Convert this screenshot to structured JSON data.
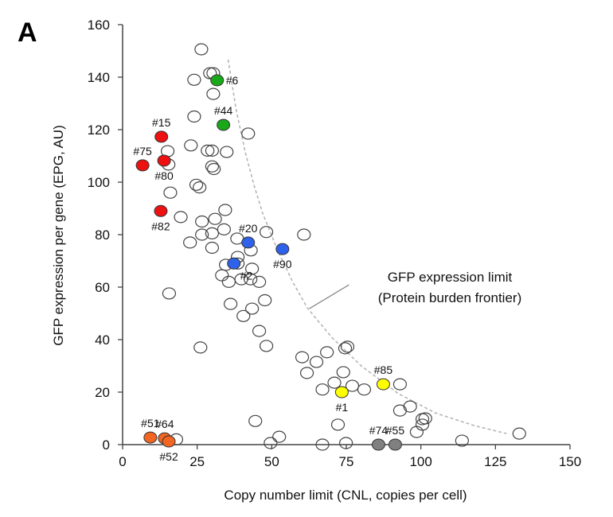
{
  "panel_label": "A",
  "chart_data": {
    "type": "scatter",
    "title": "",
    "xlabel": "Copy number limit (CNL, copies per cell)",
    "ylabel": "GFP expression per gene (EPG, AU)",
    "xlim": [
      0,
      150
    ],
    "ylim": [
      0,
      160
    ],
    "xticks": [
      0,
      25,
      50,
      75,
      100,
      125,
      150
    ],
    "yticks": [
      0,
      20,
      40,
      60,
      80,
      100,
      120,
      140,
      160
    ],
    "grid": false,
    "open_points": [
      [
        26.4,
        150.6
      ],
      [
        29.3,
        141.5
      ],
      [
        30.4,
        141.5
      ],
      [
        24,
        139
      ],
      [
        30.4,
        133.6
      ],
      [
        24,
        125
      ],
      [
        42.1,
        118.5
      ],
      [
        15.4,
        106.7
      ],
      [
        15.1,
        111.8
      ],
      [
        22.9,
        114
      ],
      [
        28.5,
        112
      ],
      [
        30,
        112
      ],
      [
        34.9,
        111.5
      ],
      [
        30,
        106
      ],
      [
        30.6,
        105
      ],
      [
        24.7,
        99
      ],
      [
        25.8,
        98
      ],
      [
        16,
        96
      ],
      [
        19.5,
        86.7
      ],
      [
        26.6,
        85
      ],
      [
        34.4,
        89.4
      ],
      [
        31,
        86
      ],
      [
        34,
        82
      ],
      [
        22.6,
        77
      ],
      [
        26.6,
        80
      ],
      [
        30,
        80.5
      ],
      [
        38.4,
        78.5
      ],
      [
        48.2,
        81
      ],
      [
        60.8,
        80
      ],
      [
        30,
        75
      ],
      [
        43,
        74
      ],
      [
        38.6,
        71.5
      ],
      [
        43.4,
        67
      ],
      [
        38.6,
        69
      ],
      [
        34.6,
        68.5
      ],
      [
        33.3,
        64.5
      ],
      [
        35.6,
        62
      ],
      [
        39.8,
        63
      ],
      [
        42.9,
        63
      ],
      [
        45.8,
        62
      ],
      [
        15.6,
        57.6
      ],
      [
        36.2,
        53.6
      ],
      [
        43.4,
        51.8
      ],
      [
        40.5,
        49
      ],
      [
        47.7,
        55
      ],
      [
        45.8,
        43.3
      ],
      [
        48.2,
        37.6
      ],
      [
        26.1,
        37
      ],
      [
        60.2,
        33.3
      ],
      [
        61.8,
        27.3
      ],
      [
        65,
        31.5
      ],
      [
        68.5,
        35.2
      ],
      [
        74.6,
        36.7
      ],
      [
        75.4,
        37.3
      ],
      [
        74,
        27.6
      ],
      [
        67,
        21
      ],
      [
        71,
        23.6
      ],
      [
        77,
        22.4
      ],
      [
        81,
        21
      ],
      [
        93,
        23
      ],
      [
        93,
        13
      ],
      [
        96.4,
        14.5
      ],
      [
        100.5,
        9.7
      ],
      [
        101.5,
        10
      ],
      [
        100.5,
        7.6
      ],
      [
        98.6,
        4.8
      ],
      [
        72.2,
        7.6
      ],
      [
        44.5,
        9
      ],
      [
        52.5,
        3
      ],
      [
        49.6,
        0.6
      ],
      [
        67,
        0
      ],
      [
        74.9,
        0.6
      ],
      [
        113.8,
        1.5
      ],
      [
        133,
        4.2
      ],
      [
        18,
        2
      ]
    ],
    "highlighted_points": [
      {
        "label": "#6",
        "x": 31.7,
        "y": 138.8,
        "color": "#1aa81a",
        "label_pos": "right"
      },
      {
        "label": "#44",
        "x": 33.8,
        "y": 121.8,
        "color": "#1aa81a",
        "label_pos": "above"
      },
      {
        "label": "#15",
        "x": 13,
        "y": 117.3,
        "color": "#ee1111",
        "label_pos": "above"
      },
      {
        "label": "#75",
        "x": 6.7,
        "y": 106.4,
        "color": "#ee1111",
        "label_pos": "above"
      },
      {
        "label": "#80",
        "x": 13.9,
        "y": 108.2,
        "color": "#ee1111",
        "label_pos": "below"
      },
      {
        "label": "#82",
        "x": 12.8,
        "y": 89,
        "color": "#ee1111",
        "label_pos": "below"
      },
      {
        "label": "#20",
        "x": 42.1,
        "y": 77,
        "color": "#2f62ea",
        "label_pos": "above"
      },
      {
        "label": "#2",
        "x": 37.3,
        "y": 69,
        "color": "#2f62ea",
        "label_pos": "below-right"
      },
      {
        "label": "#90",
        "x": 53.6,
        "y": 74.5,
        "color": "#2f62ea",
        "label_pos": "below"
      },
      {
        "label": "#85",
        "x": 87.4,
        "y": 23,
        "color": "#ffff00",
        "label_pos": "above"
      },
      {
        "label": "#1",
        "x": 73.5,
        "y": 20,
        "color": "#ffff00",
        "label_pos": "below"
      },
      {
        "label": "#74",
        "x": 85.8,
        "y": 0,
        "color": "#808080",
        "label_pos": "above"
      },
      {
        "label": "#55",
        "x": 91.4,
        "y": 0,
        "color": "#808080",
        "label_pos": "above"
      },
      {
        "label": "#51",
        "x": 9.3,
        "y": 2.7,
        "color": "#f26522",
        "label_pos": "above"
      },
      {
        "label": "#64",
        "x": 14.1,
        "y": 2.4,
        "color": "#f26522",
        "label_pos": "above"
      },
      {
        "label": "#52",
        "x": 15.5,
        "y": 1.2,
        "color": "#f26522",
        "label_pos": "below"
      }
    ],
    "frontier_curve": {
      "style": "dashed",
      "color": "#b5b5b5",
      "points": [
        [
          35.4,
          146.7
        ],
        [
          38,
          128
        ],
        [
          41,
          112
        ],
        [
          44,
          99
        ],
        [
          47,
          88
        ],
        [
          52,
          74
        ],
        [
          57,
          62
        ],
        [
          62,
          52
        ],
        [
          70,
          41
        ],
        [
          80,
          30
        ],
        [
          92.5,
          19.4
        ],
        [
          105,
          12
        ],
        [
          118,
          7.2
        ],
        [
          128.7,
          4.2
        ]
      ]
    },
    "annotation": {
      "line1": "GFP expression limit",
      "line2": "(Protein burden frontier)",
      "pointer_from": [
        62.6,
        51.8
      ],
      "pointer_to": [
        75.9,
        60.9
      ]
    }
  }
}
